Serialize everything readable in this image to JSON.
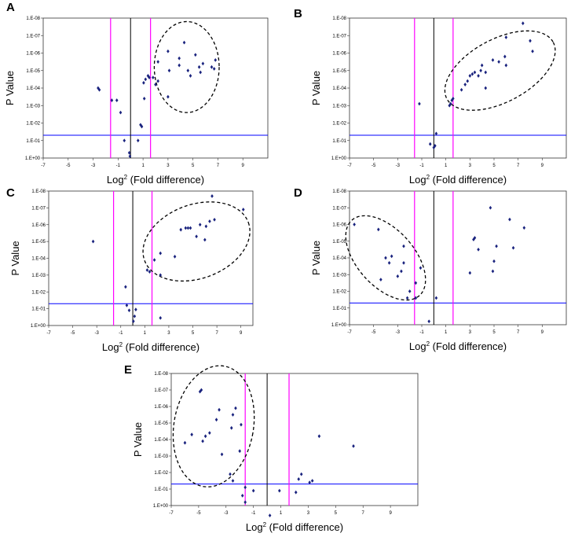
{
  "chart_data": [
    {
      "panel": "A",
      "type": "scatter",
      "xlabel": "Log",
      "xlabel_exp": "2",
      "xlabel_rest": " (Fold difference)",
      "ylabel": "P Value",
      "xlim": [
        -7,
        11
      ],
      "ylog_exponent_range": [
        0,
        8
      ],
      "xticks": [
        "-7",
        "-5",
        "-3",
        "-1",
        "1",
        "3",
        "5",
        "7",
        "9"
      ],
      "yticks": [
        "1.E+00",
        "1.E-01",
        "1.E-02",
        "1.E-03",
        "1.E-04",
        "1.E-05",
        "1.E-06",
        "1.E-07",
        "1.E-08"
      ],
      "vlines": {
        "pink": [
          -1.6,
          1.6
        ],
        "black": 0
      },
      "threshold_p": "0.05",
      "ellipse": {
        "cx": 4.5,
        "cy": 5.2,
        "rx": 2.6,
        "ry": 2.6
      },
      "points": [
        [
          -2.6,
          4.0
        ],
        [
          -2.5,
          3.9
        ],
        [
          -1.5,
          3.3
        ],
        [
          -1.1,
          3.3
        ],
        [
          -0.8,
          2.6
        ],
        [
          -0.5,
          1.0
        ],
        [
          -0.1,
          0.3
        ],
        [
          -0.05,
          0.1
        ],
        [
          0.6,
          1.0
        ],
        [
          0.8,
          1.9
        ],
        [
          0.9,
          1.8
        ],
        [
          1.1,
          3.4
        ],
        [
          1.05,
          4.3
        ],
        [
          1.2,
          4.5
        ],
        [
          1.4,
          4.7
        ],
        [
          1.5,
          4.6
        ],
        [
          1.8,
          4.6
        ],
        [
          2.0,
          4.2
        ],
        [
          2.2,
          4.4
        ],
        [
          2.2,
          5.5
        ],
        [
          3.0,
          6.1
        ],
        [
          3.0,
          3.5
        ],
        [
          3.1,
          5.0
        ],
        [
          3.9,
          5.7
        ],
        [
          3.9,
          5.3
        ],
        [
          4.3,
          6.6
        ],
        [
          4.6,
          5.0
        ],
        [
          4.8,
          4.7
        ],
        [
          5.2,
          5.9
        ],
        [
          5.5,
          5.2
        ],
        [
          5.6,
          4.9
        ],
        [
          5.8,
          5.4
        ],
        [
          6.5,
          5.2
        ],
        [
          6.8,
          5.6
        ],
        [
          6.7,
          5.1
        ]
      ]
    },
    {
      "panel": "B",
      "type": "scatter",
      "xlabel": "Log",
      "xlabel_exp": "2",
      "xlabel_rest": " (Fold difference)",
      "ylabel": "P Value",
      "xlim": [
        -7,
        11
      ],
      "ylog_exponent_range": [
        0,
        8
      ],
      "xticks": [
        "-7",
        "-5",
        "-3",
        "-1",
        "1",
        "3",
        "5",
        "7",
        "9"
      ],
      "yticks": [
        "1.E+00",
        "1.E-01",
        "1.E-02",
        "1.E-03",
        "1.E-04",
        "1.E-05",
        "1.E-06",
        "1.E-07",
        "1.E-08"
      ],
      "vlines": {
        "pink": [
          -1.6,
          1.6
        ],
        "black": 0
      },
      "threshold_p": "0.05",
      "ellipse": {
        "cx": 5.5,
        "cy": 5.0,
        "rx": 5.0,
        "ry": 1.8,
        "rotate": -28
      },
      "points": [
        [
          -1.2,
          3.1
        ],
        [
          -0.3,
          0.8
        ],
        [
          0.0,
          0.6
        ],
        [
          0.1,
          0.7
        ],
        [
          0.2,
          1.4
        ],
        [
          1.3,
          3.0
        ],
        [
          1.4,
          3.1
        ],
        [
          1.5,
          3.3
        ],
        [
          1.6,
          3.4
        ],
        [
          2.3,
          3.9
        ],
        [
          2.6,
          4.2
        ],
        [
          2.8,
          4.4
        ],
        [
          3.0,
          4.7
        ],
        [
          3.2,
          4.8
        ],
        [
          3.4,
          4.9
        ],
        [
          3.7,
          4.7
        ],
        [
          3.9,
          5.0
        ],
        [
          4.0,
          5.3
        ],
        [
          4.3,
          4.9
        ],
        [
          4.3,
          4.0
        ],
        [
          4.9,
          5.6
        ],
        [
          5.4,
          5.5
        ],
        [
          5.9,
          5.8
        ],
        [
          6.0,
          5.3
        ],
        [
          6.0,
          6.9
        ],
        [
          7.4,
          7.7
        ],
        [
          8.0,
          6.7
        ],
        [
          8.2,
          6.1
        ]
      ]
    },
    {
      "panel": "C",
      "type": "scatter",
      "xlabel": "Log",
      "xlabel_exp": "2",
      "xlabel_rest": " (Fold difference)",
      "ylabel": "P Value",
      "xlim": [
        -7,
        10
      ],
      "ylog_exponent_range": [
        0,
        8
      ],
      "xticks": [
        "-7",
        "-5",
        "-3",
        "-1",
        "1",
        "3",
        "5",
        "7",
        "9"
      ],
      "yticks": [
        "1.E+00",
        "1.E-01",
        "1.E-02",
        "1.E-03",
        "1.E-04",
        "1.E-05",
        "1.E-06",
        "1.E-07",
        "1.E-08"
      ],
      "vlines": {
        "pink": [
          -1.6,
          1.6
        ],
        "black": 0
      },
      "threshold_p": "0.05",
      "ellipse": {
        "cx": 5.3,
        "cy": 5.0,
        "rx": 4.6,
        "ry": 2.2,
        "rotate": -20
      },
      "points": [
        [
          -3.3,
          5.0
        ],
        [
          -0.6,
          2.3
        ],
        [
          -0.5,
          1.2
        ],
        [
          -0.3,
          0.9
        ],
        [
          0.05,
          0.25
        ],
        [
          0.15,
          0.55
        ],
        [
          0.25,
          0.95
        ],
        [
          1.2,
          3.3
        ],
        [
          1.4,
          3.2
        ],
        [
          1.8,
          3.9
        ],
        [
          2.3,
          3.0
        ],
        [
          2.3,
          4.3
        ],
        [
          2.3,
          0.45
        ],
        [
          3.5,
          4.1
        ],
        [
          4.0,
          5.7
        ],
        [
          4.4,
          5.8
        ],
        [
          4.6,
          5.8
        ],
        [
          4.8,
          5.8
        ],
        [
          5.3,
          5.3
        ],
        [
          5.6,
          6.0
        ],
        [
          6.0,
          5.1
        ],
        [
          6.1,
          5.9
        ],
        [
          6.4,
          6.2
        ],
        [
          6.6,
          7.7
        ],
        [
          6.8,
          6.3
        ],
        [
          9.2,
          6.9
        ]
      ]
    },
    {
      "panel": "D",
      "type": "scatter",
      "xlabel": "Log",
      "xlabel_exp": "2",
      "xlabel_rest": " (Fold difference)",
      "ylabel": "P Value",
      "xlim": [
        -7,
        11
      ],
      "ylog_exponent_range": [
        0,
        8
      ],
      "xticks": [
        "-7",
        "-5",
        "-3",
        "-1",
        "1",
        "3",
        "5",
        "7",
        "9"
      ],
      "yticks": [
        "1.E+00",
        "1.E-01",
        "1.E-02",
        "1.E-03",
        "1.E-04",
        "1.E-05",
        "1.E-06",
        "1.E-07",
        "1.E-08"
      ],
      "vlines": {
        "pink": [
          -1.6,
          1.6
        ],
        "black": 0
      },
      "threshold_p": "0.05",
      "ellipse": {
        "cx": -4.0,
        "cy": 4.0,
        "rx": 4.2,
        "ry": 1.7,
        "rotate": 48
      },
      "points": [
        [
          -6.6,
          6.0
        ],
        [
          -4.6,
          5.7
        ],
        [
          -4.4,
          2.7
        ],
        [
          -4.0,
          4.0
        ],
        [
          -3.7,
          3.7
        ],
        [
          -3.5,
          4.1
        ],
        [
          -3.0,
          2.9
        ],
        [
          -2.7,
          3.2
        ],
        [
          -2.5,
          3.7
        ],
        [
          -2.5,
          4.7
        ],
        [
          -2.2,
          1.6
        ],
        [
          -2.0,
          2.0
        ],
        [
          -1.5,
          2.5
        ],
        [
          -1.5,
          1.6
        ],
        [
          -1.1,
          3.4
        ],
        [
          -0.4,
          0.2
        ],
        [
          0.2,
          1.6
        ],
        [
          3.0,
          3.1
        ],
        [
          3.3,
          5.1
        ],
        [
          3.4,
          5.2
        ],
        [
          3.7,
          4.5
        ],
        [
          4.7,
          7.0
        ],
        [
          4.9,
          3.2
        ],
        [
          5.0,
          3.8
        ],
        [
          5.2,
          4.7
        ],
        [
          6.3,
          6.3
        ],
        [
          6.6,
          4.6
        ],
        [
          7.5,
          5.8
        ]
      ]
    },
    {
      "panel": "E",
      "type": "scatter",
      "xlabel": "Log",
      "xlabel_exp": "2",
      "xlabel_rest": " (Fold difference)",
      "ylabel": "P Value",
      "xlim": [
        -7,
        11
      ],
      "ylog_exponent_range": [
        0,
        8
      ],
      "xticks": [
        "-7",
        "-5",
        "-3",
        "-1",
        "1",
        "3",
        "5",
        "7",
        "9"
      ],
      "yticks": [
        "1.E+00",
        "1.E-01",
        "1.E-02",
        "1.E-03",
        "1.E-04",
        "1.E-05",
        "1.E-06",
        "1.E-07",
        "1.E-08"
      ],
      "vlines": {
        "pink": [
          -1.6,
          1.6
        ],
        "black": 0
      },
      "threshold_p": "0.05",
      "ellipse": {
        "cx": -3.9,
        "cy": 4.8,
        "rx": 2.9,
        "ry": 3.7,
        "rotate": 10
      },
      "points": [
        [
          -6.0,
          3.8
        ],
        [
          -5.5,
          4.3
        ],
        [
          -4.8,
          7.0
        ],
        [
          -4.9,
          6.9
        ],
        [
          -4.7,
          3.9
        ],
        [
          -4.5,
          4.2
        ],
        [
          -4.2,
          4.4
        ],
        [
          -3.7,
          5.2
        ],
        [
          -3.5,
          5.8
        ],
        [
          -3.3,
          3.1
        ],
        [
          -2.5,
          5.5
        ],
        [
          -2.6,
          4.7
        ],
        [
          -2.3,
          5.9
        ],
        [
          -2.7,
          1.9
        ],
        [
          -2.5,
          1.5
        ],
        [
          -2.0,
          3.3
        ],
        [
          -1.9,
          4.9
        ],
        [
          -1.6,
          1.1
        ],
        [
          -1.8,
          0.6
        ],
        [
          -1.6,
          0.2
        ],
        [
          -1.0,
          0.9
        ],
        [
          0.2,
          -0.6
        ],
        [
          0.9,
          0.9
        ],
        [
          2.1,
          0.8
        ],
        [
          2.3,
          1.6
        ],
        [
          2.5,
          1.9
        ],
        [
          3.1,
          1.4
        ],
        [
          3.3,
          1.5
        ],
        [
          3.8,
          4.2
        ],
        [
          6.3,
          3.6
        ]
      ]
    }
  ]
}
